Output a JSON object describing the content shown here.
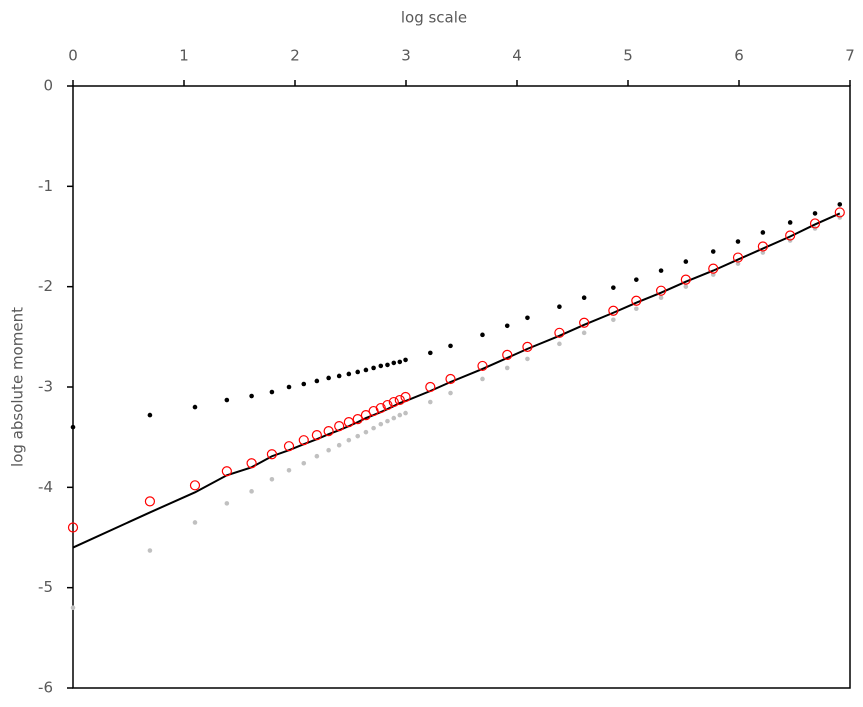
{
  "chart_data": {
    "type": "scatter",
    "x_label": "log scale",
    "y_label": "log absolute moment",
    "x_axis_position": "top",
    "xlim": [
      0,
      7
    ],
    "xticks": [
      0,
      1,
      2,
      3,
      4,
      5,
      6,
      7
    ],
    "ylim": [
      -6,
      0
    ],
    "yticks": [
      0,
      -1,
      -2,
      -3,
      -4,
      -5,
      -6
    ],
    "x": [
      0,
      0.693,
      1.099,
      1.386,
      1.609,
      1.792,
      1.946,
      2.079,
      2.197,
      2.303,
      2.398,
      2.485,
      2.565,
      2.639,
      2.708,
      2.773,
      2.833,
      2.89,
      2.944,
      2.996,
      3.219,
      3.401,
      3.689,
      3.912,
      4.094,
      4.382,
      4.605,
      4.868,
      5.075,
      5.298,
      5.521,
      5.768,
      5.991,
      6.215,
      6.461,
      6.685,
      6.908
    ],
    "series": [
      {
        "marker": "dot",
        "color": "#000000",
        "values": [
          -3.4,
          -3.28,
          -3.2,
          -3.13,
          -3.09,
          -3.05,
          -3.0,
          -2.97,
          -2.94,
          -2.91,
          -2.89,
          -2.87,
          -2.85,
          -2.83,
          -2.81,
          -2.79,
          -2.78,
          -2.76,
          -2.75,
          -2.73,
          -2.66,
          -2.59,
          -2.48,
          -2.39,
          -2.31,
          -2.2,
          -2.11,
          -2.01,
          -1.93,
          -1.84,
          -1.75,
          -1.65,
          -1.55,
          -1.46,
          -1.36,
          -1.27,
          -1.18
        ]
      },
      {
        "marker": "dot",
        "color": "#c0c0c0",
        "values": [
          -5.2,
          -4.63,
          -4.35,
          -4.16,
          -4.04,
          -3.92,
          -3.83,
          -3.76,
          -3.69,
          -3.63,
          -3.58,
          -3.53,
          -3.49,
          -3.45,
          -3.41,
          -3.37,
          -3.34,
          -3.31,
          -3.28,
          -3.26,
          -3.15,
          -3.06,
          -2.92,
          -2.81,
          -2.72,
          -2.57,
          -2.46,
          -2.33,
          -2.22,
          -2.11,
          -2.0,
          -1.88,
          -1.77,
          -1.66,
          -1.54,
          -1.42,
          -1.31
        ]
      },
      {
        "marker": "line",
        "color": "#000000",
        "values": [
          -4.6,
          -4.25,
          -4.05,
          -3.88,
          -3.8,
          -3.69,
          -3.63,
          -3.57,
          -3.52,
          -3.47,
          -3.43,
          -3.39,
          -3.35,
          -3.31,
          -3.28,
          -3.25,
          -3.22,
          -3.19,
          -3.16,
          -3.14,
          -3.04,
          -2.95,
          -2.82,
          -2.71,
          -2.62,
          -2.49,
          -2.38,
          -2.26,
          -2.16,
          -2.06,
          -1.95,
          -1.84,
          -1.73,
          -1.62,
          -1.5,
          -1.38,
          -1.27
        ]
      },
      {
        "marker": "circle",
        "color": "#ff0000",
        "values": [
          -4.4,
          -4.14,
          -3.98,
          -3.84,
          -3.76,
          -3.67,
          -3.59,
          -3.53,
          -3.48,
          -3.44,
          -3.39,
          -3.35,
          -3.32,
          -3.28,
          -3.24,
          -3.21,
          -3.18,
          -3.15,
          -3.13,
          -3.1,
          -3.0,
          -2.92,
          -2.79,
          -2.68,
          -2.6,
          -2.46,
          -2.36,
          -2.24,
          -2.14,
          -2.04,
          -1.93,
          -1.82,
          -1.71,
          -1.6,
          -1.49,
          -1.37,
          -1.26
        ]
      }
    ]
  }
}
